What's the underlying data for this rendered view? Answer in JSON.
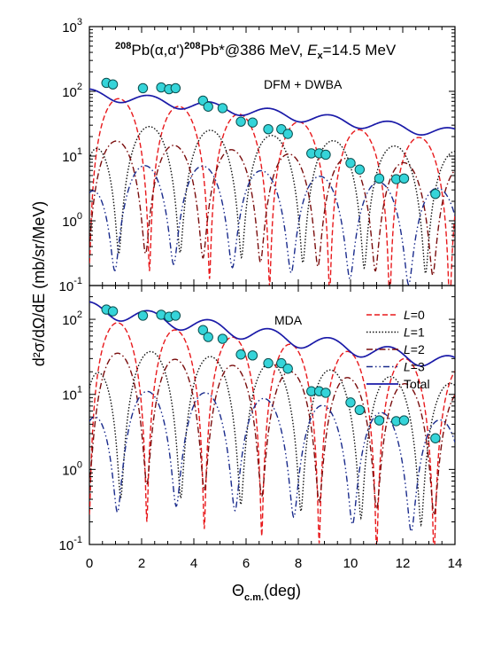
{
  "chart_data": {
    "type": "line",
    "shared_x": {
      "range": [
        0,
        14
      ],
      "ticks": [
        0,
        2,
        4,
        6,
        8,
        10,
        12,
        14
      ],
      "minor_step": 0.5,
      "label": "Θ",
      "label_sub": "c.m.",
      "label_unit": "(deg)"
    },
    "shared_y": {
      "label": "d²σ/dΩ/dE (mb/sr/MeV)",
      "scale": "log",
      "range": [
        0.1,
        1000
      ]
    },
    "colors": {
      "L0": "#e8191c",
      "L1": "#111111",
      "L2": "#7a0d0d",
      "L3": "#1a2b8c",
      "Total": "#1a1aa8",
      "data_fill": "#35d4d9",
      "data_edge": "#0a4f4f"
    },
    "data_points": [
      [
        0.65,
        135
      ],
      [
        0.9,
        128
      ],
      [
        2.05,
        112
      ],
      [
        2.75,
        115
      ],
      [
        3.05,
        108
      ],
      [
        3.3,
        112
      ],
      [
        4.35,
        72
      ],
      [
        4.55,
        58
      ],
      [
        5.1,
        55
      ],
      [
        5.8,
        34
      ],
      [
        6.25,
        33
      ],
      [
        6.85,
        26
      ],
      [
        7.35,
        26
      ],
      [
        7.6,
        22
      ],
      [
        8.5,
        11
      ],
      [
        8.8,
        11
      ],
      [
        9.05,
        10.5
      ],
      [
        10.0,
        7.8
      ],
      [
        10.35,
        6.2
      ],
      [
        11.1,
        4.5
      ],
      [
        11.75,
        4.4
      ],
      [
        12.05,
        4.5
      ],
      [
        13.25,
        2.6
      ]
    ],
    "panels": [
      {
        "id": "top",
        "title_parts": {
          "sup1": "208",
          "main1": "Pb(",
          "alpha": "α",
          "comma": ",",
          "alpha_prime": "α'",
          "close": ")",
          "sup2": "208",
          "main2": "Pb*@386 MeV, ",
          "e_italic": "E",
          "e_sub": "x",
          "e_value": "=14.5 MeV"
        },
        "model_label": "DFM + DWBA",
        "y_ticks": [
          {
            "value": 0.1,
            "label": "10",
            "exp": "-1"
          },
          {
            "value": 1,
            "label": "10",
            "exp": "0"
          },
          {
            "value": 10,
            "label": "10",
            "exp": "1"
          },
          {
            "value": 100,
            "label": "10",
            "exp": "2"
          },
          {
            "value": 1000,
            "label": "10",
            "exp": "3"
          }
        ],
        "series": [
          {
            "key": "L0",
            "style": "dashed",
            "A": 88,
            "period": 2.3,
            "phase": -1.15,
            "floor": 0.0025,
            "decay": 0.12
          },
          {
            "key": "L1",
            "style": "dotted",
            "A": 36,
            "period": 2.35,
            "phase": -0.05,
            "floor": 0.012,
            "decay": 0.08,
            "env_rise": 0.9
          },
          {
            "key": "L2",
            "style": "dashdot",
            "A": 18,
            "period": 2.2,
            "phase": 1.05,
            "floor": 0.02,
            "decay": 0.07,
            "env_rise": 0.0
          },
          {
            "key": "L3",
            "style": "dashdotdot",
            "A": 11,
            "period": 2.25,
            "phase": 2.1,
            "floor": 0.03,
            "decay": 0.095,
            "env_rise": 1.8
          },
          {
            "key": "Total",
            "style": "solid",
            "A": 92,
            "decay": 0.1,
            "wiggle": 0.18,
            "period": 2.3
          }
        ]
      },
      {
        "id": "bottom",
        "model_label": "MDA",
        "y_ticks": [
          {
            "value": 0.1,
            "label": "10",
            "exp": "-1"
          },
          {
            "value": 1,
            "label": "10",
            "exp": "0"
          },
          {
            "value": 10,
            "label": "10",
            "exp": "1"
          },
          {
            "value": 100,
            "label": "10",
            "exp": "2"
          }
        ],
        "legend": [
          {
            "key": "L0",
            "style": "dashed",
            "l": "L",
            "text": "=0"
          },
          {
            "key": "L1",
            "style": "dotted",
            "l": "L",
            "text": "=1"
          },
          {
            "key": "L2",
            "style": "dashdot",
            "l": "L",
            "text": "=2"
          },
          {
            "key": "L3",
            "style": "dashdotdot",
            "l": "L",
            "text": "=3"
          },
          {
            "key": "Total",
            "style": "solid",
            "l": "",
            "text": "Total"
          }
        ],
        "series": [
          {
            "key": "L0",
            "style": "dashed",
            "A": 100,
            "period": 2.2,
            "phase": -1.1,
            "floor": 0.0025,
            "decay": 0.1
          },
          {
            "key": "L1",
            "style": "dotted",
            "A": 48,
            "period": 2.3,
            "phase": 0.05,
            "floor": 0.012,
            "decay": 0.09,
            "env_rise": 0.9
          },
          {
            "key": "L2",
            "style": "dashdot",
            "A": 38,
            "period": 2.2,
            "phase": 1.1,
            "floor": 0.02,
            "decay": 0.085,
            "env_rise": 0.0
          },
          {
            "key": "L3",
            "style": "dashdotdot",
            "A": 17,
            "period": 2.25,
            "phase": 2.2,
            "floor": 0.03,
            "decay": 0.1,
            "env_rise": 1.8
          },
          {
            "key": "Total",
            "style": "solid",
            "A": 140,
            "decay": 0.12,
            "wiggle": 0.22,
            "period": 2.3
          }
        ]
      }
    ]
  }
}
